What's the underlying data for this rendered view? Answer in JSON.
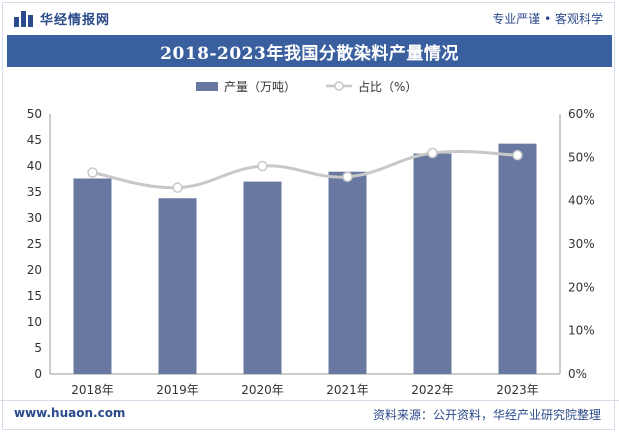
{
  "header": {
    "brand": "华经情报网",
    "slogan": "专业严谨 • 客观科学"
  },
  "title": "2018-2023年我国分散染料产量情况",
  "footer": {
    "website": "www.huaon.com",
    "source": "资料来源：公开资料，华经产业研究院整理"
  },
  "watermark": "华经产业研究院",
  "chart_data": {
    "type": "bar+line",
    "categories": [
      "2018年",
      "2019年",
      "2020年",
      "2021年",
      "2022年",
      "2023年"
    ],
    "series": [
      {
        "name": "产量（万吨）",
        "type": "bar",
        "axis": "left",
        "color": "#6878a0",
        "values": [
          37.6,
          33.8,
          37.0,
          38.9,
          42.4,
          44.3
        ]
      },
      {
        "name": "占比（%）",
        "type": "line",
        "axis": "right",
        "color": "#c8c8c8",
        "values": [
          46.5,
          43.0,
          48.0,
          45.5,
          51.0,
          50.5
        ]
      }
    ],
    "y_left": {
      "min": 0,
      "max": 50,
      "step": 5,
      "ticks": [
        "0",
        "5",
        "10",
        "15",
        "20",
        "25",
        "30",
        "35",
        "40",
        "45",
        "50"
      ]
    },
    "y_right": {
      "min": 0,
      "max": 60,
      "step": 10,
      "ticks": [
        "0%",
        "10%",
        "20%",
        "30%",
        "40%",
        "50%",
        "60%"
      ]
    },
    "legend": {
      "position": "top-center",
      "bar_label": "产量（万吨）",
      "line_label": "占比（%）"
    },
    "grid": false
  }
}
